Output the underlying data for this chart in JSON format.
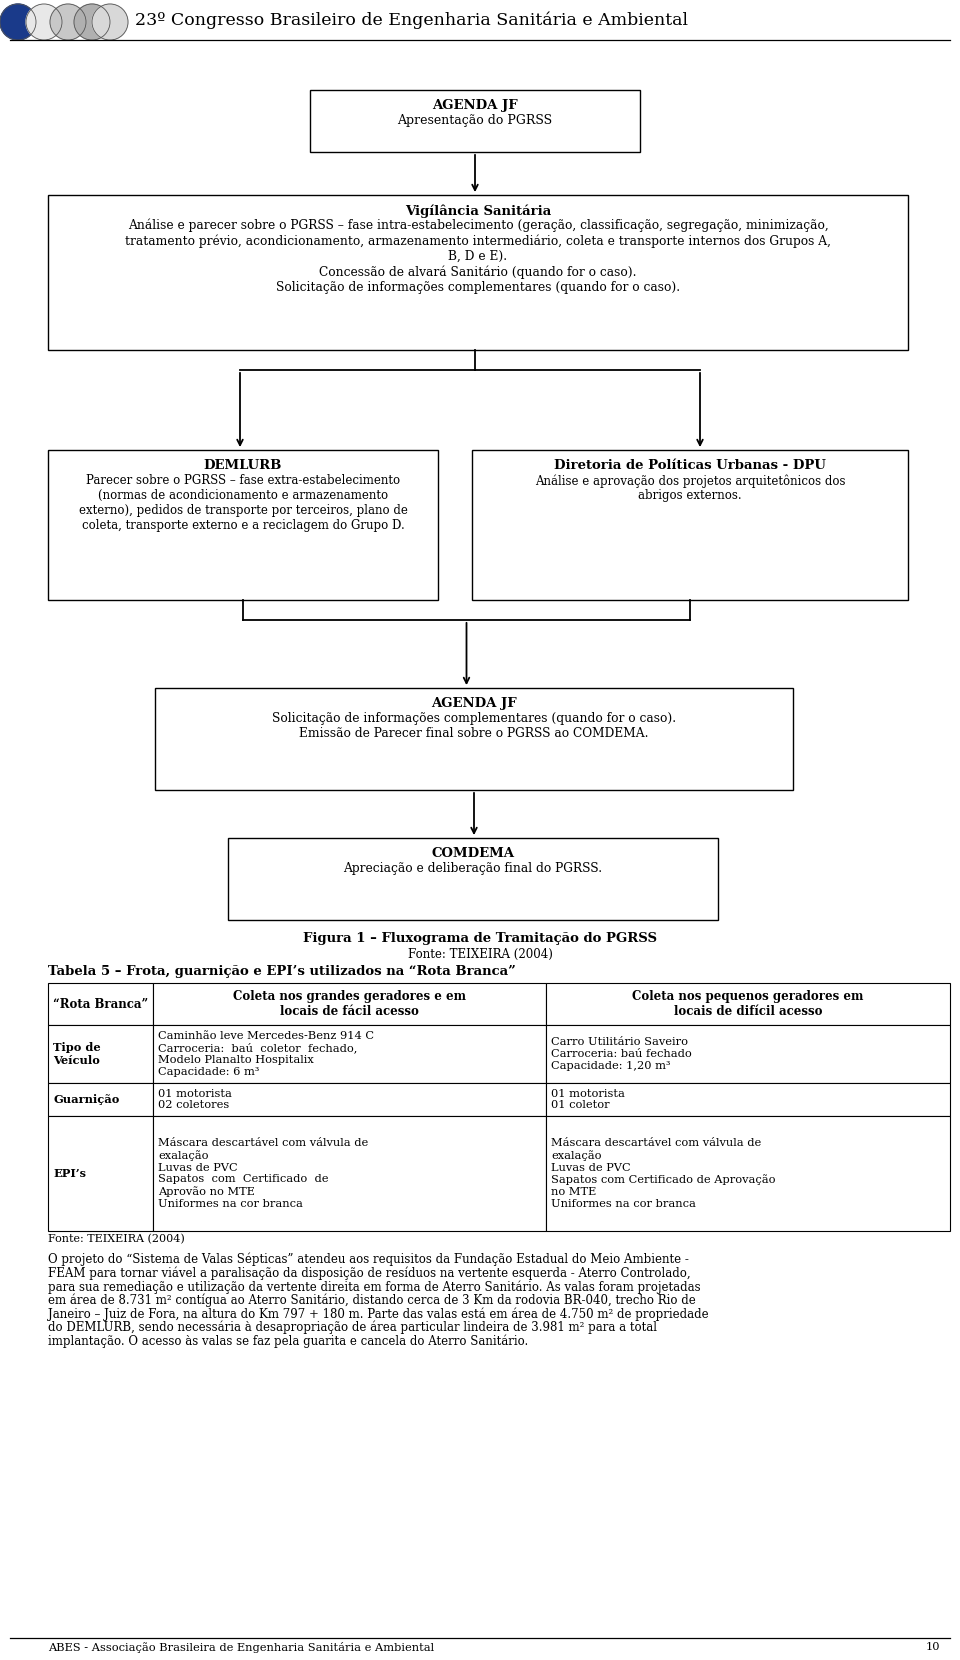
{
  "bg_color": "#ffffff",
  "header_title": "23º Congresso Brasileiro de Engenharia Sanitária e Ambiental",
  "box1_title": "AGENDA JF",
  "box1_body": "Apresentação do PGRSS",
  "box2_title": "Vigílância Sanitária",
  "box2_body": "Análise e parecer sobre o PGRSS – fase intra-estabelecimento (geração, classificação, segregação, minimização,\ntratamento prévio, acondicionamento, armazenamento intermediário, coleta e transporte internos dos Grupos A,\nB, D e E).\nConcessão de alvará Sanitário (quando for o caso).\nSolicitação de informações complementares (quando for o caso).",
  "box3l_title": "DEMLURB",
  "box3l_body": "Parecer sobre o PGRSS – fase extra-estabelecimento\n(normas de acondicionamento e armazenamento\nexterno), pedidos de transporte por terceiros, plano de\ncoleta, transporte externo e a reciclagem do Grupo D.",
  "box3r_title": "Diretoria de Políticas Urbanas - DPU",
  "box3r_body": "Análise e aprovação dos projetos arquitetônicos dos\nabrigos externos.",
  "box4_title": "AGENDA JF",
  "box4_body": "Solicitação de informações complementares (quando for o caso).\nEmissão de Parecer final sobre o PGRSS ao COMDEMA.",
  "box5_title": "COMDEMA",
  "box5_body": "Apreciação e deliberação final do PGRSS.",
  "fig_caption": "Figura 1 – Fluxograma de Tramitação do PGRSS",
  "fig_source": "Fonte: TEIXEIRA (2004)",
  "table_title": "Tabela 5 – Frota, guarnição e EPI’s utilizados na “Rota Branca”",
  "table_h0": "“Rota Branca”",
  "table_h1": "Coleta nos grandes geradores e em\nlocais de fácil acesso",
  "table_h2": "Coleta nos pequenos geradores em\nlocais de difícil acesso",
  "r0c0": "Tipo de\nVeículo",
  "r0c1": "Caminhão leve Mercedes-Benz 914 C\nCarroceria:  baú  coletor  fechado,\nModelo Planalto Hospitalix\nCapacidade: 6 m³",
  "r0c2": "Carro Utilitário Saveiro\nCarroceria: baú fechado\nCapacidade: 1,20 m³",
  "r1c0": "Guarnição",
  "r1c1": "01 motorista\n02 coletores",
  "r1c2": "01 motorista\n01 coletor",
  "r2c0": "EPI’s",
  "r2c1": "Máscara descartável com válvula de\nexalação\nLuvas de PVC\nSapatos  com  Certificado  de\nAprovão no MTE\nUniformes na cor branca",
  "r2c2": "Máscara descartável com válvula de\nexalação\nLuvas de PVC\nSapatos com Certificado de Aprovação\nno MTE\nUniformes na cor branca",
  "table_source": "Fonte: TEIXEIRA (2004)",
  "bt0": "O projeto do “Sistema de Valas Sépticas” atendeu aos requisitos da Fundação Estadual do Meio Ambiente -",
  "bt1": "FEAM para tornar viável a paralisação da disposição de resíduos na vertente esquerda - Aterro Controlado,",
  "bt2": "para sua remediação e utilização da vertente direita em forma de Aterro Sanitário. As valas foram projetadas",
  "bt3": "em área de 8.731 m² contígua ao Aterro Sanitário, distando cerca de 3 Km da rodovia BR-040, trecho Rio de",
  "bt4": "Janeiro – Juiz de Fora, na altura do Km 797 + 180 m. Parte das valas está em área de 4.750 m² de propriedade",
  "bt5": "do DEMLURB, sendo necessária à desapropriação de área particular lindeira de 3.981 m² para a total",
  "bt6": "implantação. O acesso às valas se faz pela guarita e cancela do Aterro Sanitário.",
  "footer_text": "ABES - Associação Brasileira de Engenharia Sanitária e Ambiental",
  "footer_page": "10"
}
